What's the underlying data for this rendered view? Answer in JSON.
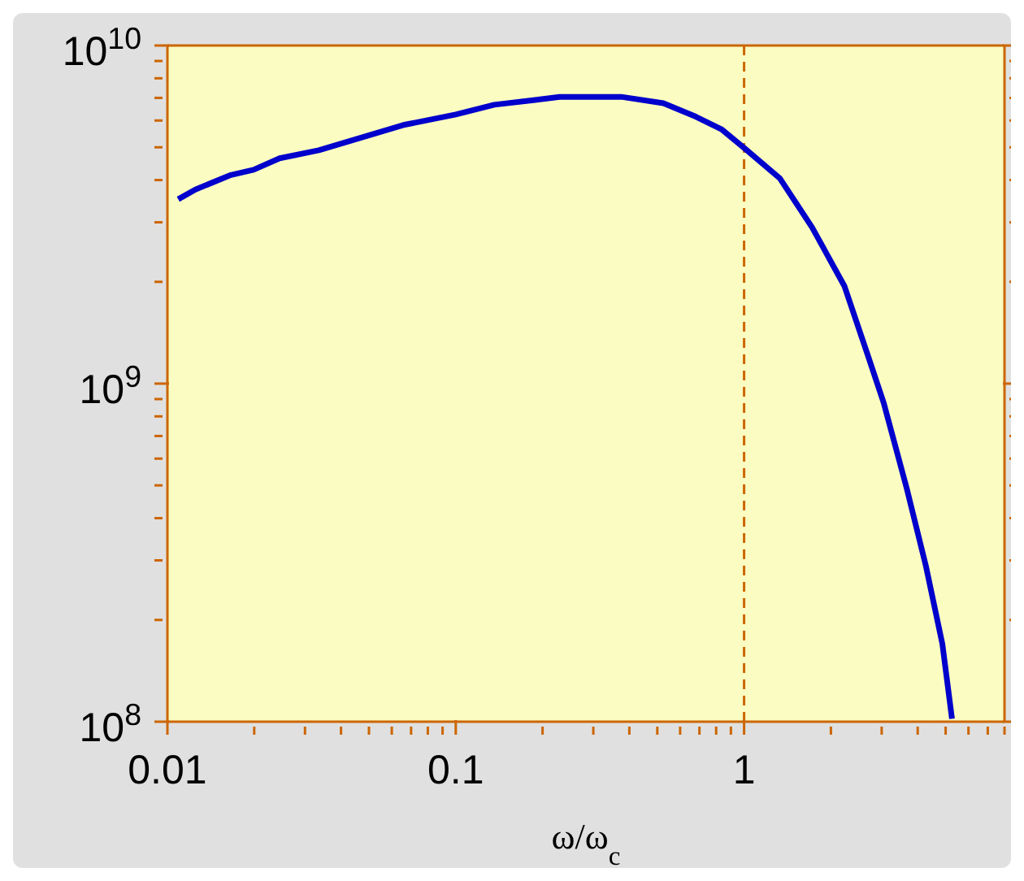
{
  "chart_data": {
    "type": "line",
    "xlabel": "ω/ω$_{c}$",
    "log": "xy",
    "grid": false,
    "marker": "none",
    "line_style": "solid",
    "xlim": [
      0.01,
      8
    ],
    "ylim": [
      100000000,
      10000000000
    ],
    "xticks": [
      0.01,
      {
        "value": 0.02,
        "label": null
      },
      {
        "value": 0.03,
        "label": null
      },
      {
        "value": 0.04,
        "label": null
      },
      {
        "value": 0.05,
        "label": null
      },
      {
        "value": 0.06,
        "label": null
      },
      {
        "value": 0.07,
        "label": null
      },
      {
        "value": 0.08,
        "label": null
      },
      {
        "value": 0.09,
        "label": null
      },
      0.1,
      {
        "value": 0.2,
        "label": null
      },
      {
        "value": 0.3,
        "label": null
      },
      {
        "value": 0.4,
        "label": null
      },
      {
        "value": 0.5,
        "label": null
      },
      {
        "value": 0.6,
        "label": null
      },
      {
        "value": 0.7,
        "label": null
      },
      {
        "value": 0.8,
        "label": null
      },
      {
        "value": 0.9,
        "label": null
      },
      1,
      {
        "value": 2,
        "label": null
      },
      {
        "value": 3,
        "label": null
      },
      {
        "value": 4,
        "label": null
      },
      {
        "value": 5,
        "label": null
      },
      {
        "value": 6,
        "label": null
      },
      {
        "value": 7,
        "label": null
      },
      {
        "value": 8,
        "label": null
      }
    ],
    "yticks": [
      {
        "value": 100000000,
        "label": "10$^{8}$"
      },
      {
        "value": 200000000,
        "label": null
      },
      {
        "value": 300000000,
        "label": null
      },
      {
        "value": 400000000,
        "label": null
      },
      {
        "value": 500000000,
        "label": null
      },
      {
        "value": 600000000,
        "label": null
      },
      {
        "value": 700000000,
        "label": null
      },
      {
        "value": 800000000,
        "label": null
      },
      {
        "value": 900000000,
        "label": null
      },
      {
        "value": 1000000000,
        "label": "10$^{9}$"
      },
      {
        "value": 2000000000,
        "label": null
      },
      {
        "value": 3000000000,
        "label": null
      },
      {
        "value": 4000000000,
        "label": null
      },
      {
        "value": 5000000000,
        "label": null
      },
      {
        "value": 6000000000,
        "label": null
      },
      {
        "value": 7000000000,
        "label": null
      },
      {
        "value": 8000000000,
        "label": null
      },
      {
        "value": 9000000000,
        "label": null
      },
      {
        "value": 10000000000,
        "label": "10$^{10}$"
      }
    ],
    "ref_lines": [
      {
        "axis": "x",
        "value": 1,
        "label": null,
        "color": "#cc6600",
        "line_style": "dashed"
      }
    ],
    "series": [
      {
        "color": "#0000cc",
        "x": [
          0.0109,
          0.0125,
          0.0166,
          0.0199,
          0.0245,
          0.0335,
          0.0658,
          0.1,
          0.136,
          0.186,
          0.229,
          0.375,
          0.525,
          0.68,
          0.838,
          1.0,
          1.33,
          1.72,
          2.23,
          2.68,
          3.05,
          3.66,
          4.27,
          4.87,
          5.26
        ],
        "values": [
          3510000000,
          3750000000,
          4140000000,
          4290000000,
          4640000000,
          4900000000,
          5820000000,
          6250000000,
          6680000000,
          6890000000,
          7050000000,
          7050000000,
          6750000000,
          6160000000,
          5640000000,
          4980000000,
          4050000000,
          2900000000,
          1940000000,
          1220000000,
          876000000,
          492000000,
          289000000,
          170000000,
          102000000
        ]
      }
    ]
  }
}
